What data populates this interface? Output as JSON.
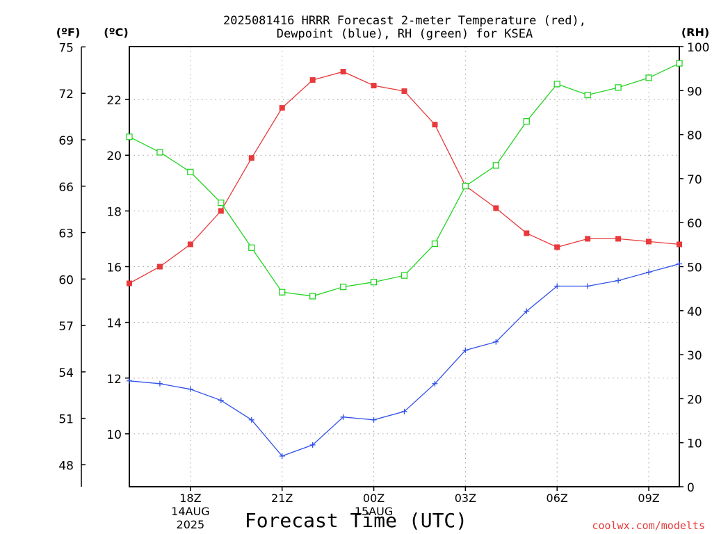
{
  "chart_data": {
    "type": "line",
    "title_line1": "2025081416 HRRR Forecast 2-meter Temperature (red),",
    "title_line2": "Dewpoint (blue), RH (green) for KSEA",
    "xlabel": "Forecast Time (UTC)",
    "watermark": "coolwx.com/modelts",
    "unit_f": "(ºF)",
    "unit_c": "(ºC)",
    "unit_rh": "(RH)",
    "x_hours": [
      16,
      17,
      18,
      19,
      20,
      21,
      22,
      23,
      24,
      25,
      26,
      27,
      28,
      29,
      30,
      31,
      32,
      33,
      34
    ],
    "x_range": [
      16,
      34
    ],
    "x_ticks": [
      {
        "hour": 18,
        "label": "18Z",
        "date": "14AUG",
        "year": "2025"
      },
      {
        "hour": 21,
        "label": "21Z"
      },
      {
        "hour": 24,
        "label": "00Z",
        "date": "15AUG"
      },
      {
        "hour": 27,
        "label": "03Z"
      },
      {
        "hour": 30,
        "label": "06Z"
      },
      {
        "hour": 33,
        "label": "09Z"
      }
    ],
    "celsius_axis": {
      "range": [
        8.1,
        23.9
      ],
      "ticks": [
        "10",
        "12",
        "14",
        "16",
        "18",
        "20",
        "22"
      ]
    },
    "fahrenheit_axis": {
      "ticks": [
        "48",
        "51",
        "54",
        "57",
        "60",
        "63",
        "66",
        "69",
        "72",
        "75"
      ]
    },
    "rh_axis": {
      "range": [
        0,
        100
      ],
      "ticks": [
        "0",
        "10",
        "20",
        "30",
        "40",
        "50",
        "60",
        "70",
        "80",
        "90",
        "100"
      ]
    },
    "series": [
      {
        "name": "Temperature",
        "axis": "c",
        "color": "#e8393b",
        "marker": "filled-square",
        "values": [
          15.4,
          16.0,
          16.8,
          18.0,
          19.9,
          21.7,
          22.7,
          23.0,
          22.5,
          22.3,
          21.1,
          18.9,
          18.1,
          17.2,
          16.7,
          17.0,
          17.0,
          16.9,
          16.8
        ]
      },
      {
        "name": "Dewpoint",
        "axis": "c",
        "color": "#3050e8",
        "marker": "plus",
        "values": [
          11.9,
          11.8,
          11.6,
          11.2,
          10.5,
          9.2,
          9.6,
          10.6,
          10.5,
          10.8,
          11.8,
          13.0,
          13.3,
          14.4,
          15.3,
          15.3,
          15.5,
          15.8,
          16.1
        ]
      },
      {
        "name": "RH",
        "axis": "rh",
        "color": "#22d422",
        "marker": "open-square",
        "values": [
          79.5,
          76.0,
          71.5,
          64.5,
          54.3,
          44.2,
          43.3,
          45.4,
          46.5,
          48.0,
          55.2,
          68.3,
          73.0,
          83.0,
          91.5,
          89.0,
          90.7,
          92.9,
          96.2
        ]
      }
    ],
    "grid": true
  }
}
